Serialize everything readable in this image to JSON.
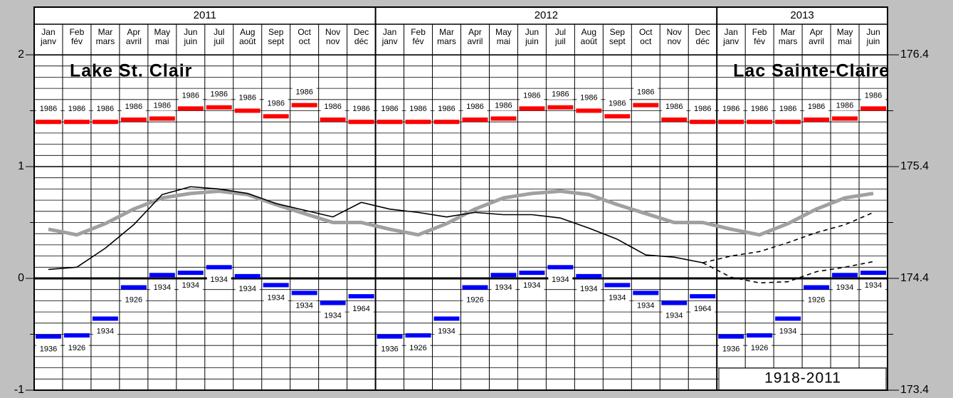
{
  "chart_data": {
    "type": "line",
    "title": "Lake St. Clair",
    "title_fr": "Lac Sainte-Claire",
    "period": "1918-2011",
    "years": [
      "2011",
      "2012",
      "2013"
    ],
    "categories": [
      "Jan",
      "Feb",
      "Mar",
      "Apr",
      "May",
      "Jun",
      "Jul",
      "Aug",
      "Sep",
      "Oct",
      "Nov",
      "Dec",
      "Jan",
      "Feb",
      "Mar",
      "Apr",
      "May",
      "Jun",
      "Jul",
      "Aug",
      "Sep",
      "Oct",
      "Nov",
      "Dec",
      "Jan",
      "Feb",
      "Mar",
      "Apr",
      "May",
      "Jun"
    ],
    "categories_fr": [
      "janv",
      "fév",
      "mars",
      "avril",
      "mai",
      "juin",
      "juil",
      "août",
      "sept",
      "oct",
      "nov",
      "déc",
      "janv",
      "fév",
      "mars",
      "avril",
      "mai",
      "juin",
      "juil",
      "août",
      "sept",
      "oct",
      "nov",
      "déc",
      "janv",
      "fév",
      "mars",
      "avril",
      "mai",
      "juin"
    ],
    "ylim": [
      -1,
      2
    ],
    "yticks": [
      -1,
      0,
      1,
      2
    ],
    "y2lim": [
      173.4,
      176.4
    ],
    "y2ticks": [
      173.4,
      174.4,
      175.4,
      176.4
    ],
    "record_high": {
      "color": "#ff0000",
      "values": [
        1.4,
        1.4,
        1.4,
        1.42,
        1.43,
        1.52,
        1.53,
        1.5,
        1.45,
        1.55,
        1.42,
        1.4,
        1.4,
        1.4,
        1.4,
        1.42,
        1.43,
        1.52,
        1.53,
        1.5,
        1.45,
        1.55,
        1.42,
        1.4,
        1.4,
        1.4,
        1.4,
        1.42,
        1.43,
        1.52
      ],
      "labels": [
        "1986",
        "1986",
        "1986",
        "1986",
        "1986",
        "1986",
        "1986",
        "1986",
        "1986",
        "1986",
        "1986",
        "1986",
        "1986",
        "1986",
        "1986",
        "1986",
        "1986",
        "1986",
        "1986",
        "1986",
        "1986",
        "1986",
        "1986",
        "1986",
        "1986",
        "1986",
        "1986",
        "1986",
        "1986",
        "1986"
      ]
    },
    "record_low": {
      "color": "#0000ff",
      "values": [
        -0.52,
        -0.51,
        -0.36,
        -0.08,
        0.03,
        0.05,
        0.1,
        0.02,
        -0.06,
        -0.13,
        -0.22,
        -0.16,
        -0.52,
        -0.51,
        -0.36,
        -0.08,
        0.03,
        0.05,
        0.1,
        0.02,
        -0.06,
        -0.13,
        -0.22,
        -0.16,
        -0.52,
        -0.51,
        -0.36,
        -0.08,
        0.03,
        0.05
      ],
      "labels": [
        "1936",
        "1926",
        "1934",
        "1926",
        "1934",
        "1934",
        "1934",
        "1934",
        "1934",
        "1934",
        "1934",
        "1964",
        "1936",
        "1926",
        "1934",
        "1926",
        "1934",
        "1934",
        "1934",
        "1934",
        "1934",
        "1934",
        "1934",
        "1964",
        "1936",
        "1926",
        "1934",
        "1926",
        "1934",
        "1934"
      ]
    },
    "series": [
      {
        "color": "#a0a0a0",
        "width": 5,
        "dashed": false,
        "values": [
          0.44,
          0.39,
          0.49,
          0.62,
          0.72,
          0.76,
          0.78,
          0.75,
          0.66,
          0.58,
          0.5,
          0.5,
          0.44,
          0.39,
          0.49,
          0.62,
          0.72,
          0.76,
          0.78,
          0.75,
          0.66,
          0.58,
          0.5,
          0.5,
          0.44,
          0.39,
          0.49,
          0.62,
          0.72,
          0.76
        ]
      },
      {
        "color": "#000000",
        "width": 1.6,
        "dashed": false,
        "values": [
          0.08,
          0.1,
          0.27,
          0.48,
          0.75,
          0.82,
          0.8,
          0.76,
          0.67,
          0.61,
          0.55,
          0.68,
          0.62,
          0.59,
          0.55,
          0.59,
          0.57,
          0.57,
          0.54,
          0.45,
          0.35,
          0.21,
          0.19,
          0.14,
          null,
          null,
          null,
          null,
          null,
          null
        ]
      },
      {
        "color": "#000000",
        "width": 1.6,
        "dashed": true,
        "values": [
          null,
          null,
          null,
          null,
          null,
          null,
          null,
          null,
          null,
          null,
          null,
          null,
          null,
          null,
          null,
          null,
          null,
          null,
          null,
          null,
          null,
          null,
          null,
          0.14,
          0.2,
          0.24,
          0.32,
          0.41,
          0.48,
          0.59
        ]
      },
      {
        "color": "#000000",
        "width": 1.6,
        "dashed": true,
        "values": [
          null,
          null,
          null,
          null,
          null,
          null,
          null,
          null,
          null,
          null,
          null,
          null,
          null,
          null,
          null,
          null,
          null,
          null,
          null,
          null,
          null,
          null,
          null,
          0.14,
          0.01,
          -0.04,
          -0.03,
          0.06,
          0.1,
          0.15
        ]
      }
    ]
  }
}
